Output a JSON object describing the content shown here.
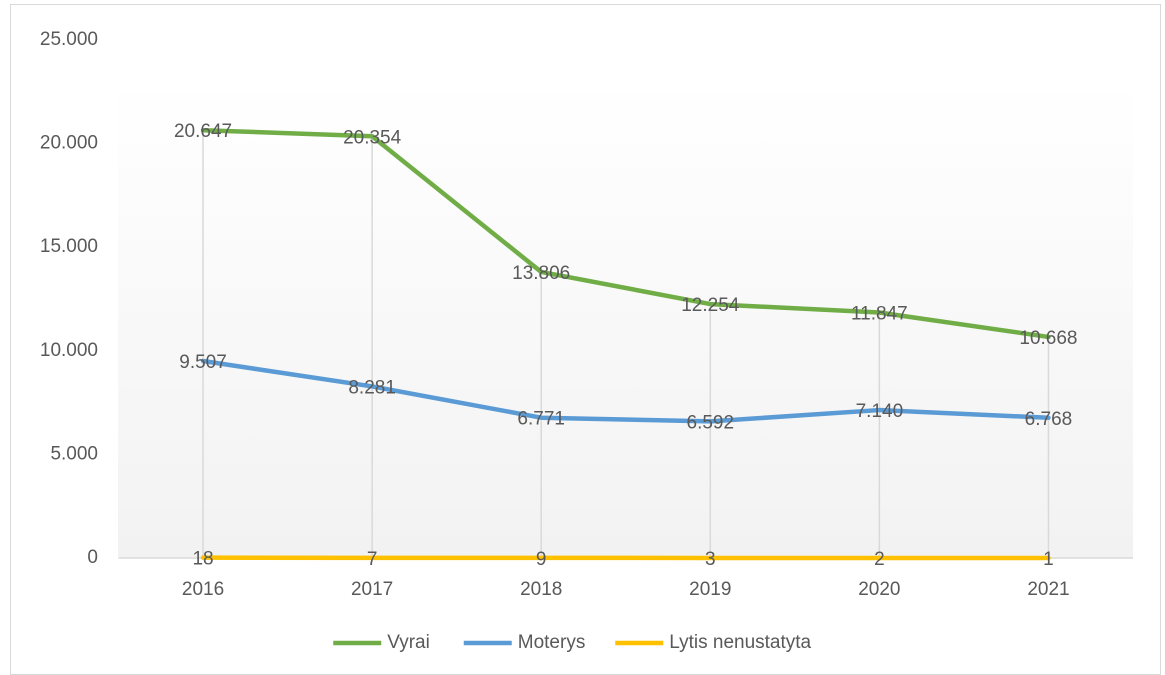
{
  "chart_data": {
    "type": "line",
    "categories": [
      "2016",
      "2017",
      "2018",
      "2019",
      "2020",
      "2021"
    ],
    "series": [
      {
        "name": "Vyrai",
        "color": "#70ad47",
        "values": [
          20647,
          20354,
          13806,
          12254,
          11847,
          10668
        ],
        "value_labels": [
          "20.647",
          "20.354",
          "13.806",
          "12.254",
          "11.847",
          "10.668"
        ]
      },
      {
        "name": "Moterys",
        "color": "#5b9bd5",
        "values": [
          9507,
          8281,
          6771,
          6592,
          7140,
          6768
        ],
        "value_labels": [
          "9.507",
          "8.281",
          "6.771",
          "6.592",
          "7.140",
          "6.768"
        ]
      },
      {
        "name": "Lytis nenustatyta",
        "color": "#ffc000",
        "values": [
          18,
          7,
          9,
          3,
          2,
          1
        ]
      }
    ],
    "ylim": [
      0,
      25000
    ],
    "yticks": [
      0,
      {
        "value": 5000,
        "label": "5.000"
      },
      {
        "value": 10000,
        "label": "10.000"
      },
      {
        "value": 15000,
        "label": "15.000"
      },
      {
        "value": 20000,
        "label": "20.000"
      },
      {
        "value": 25000,
        "label": "25.000"
      }
    ],
    "legend": "bottom"
  }
}
